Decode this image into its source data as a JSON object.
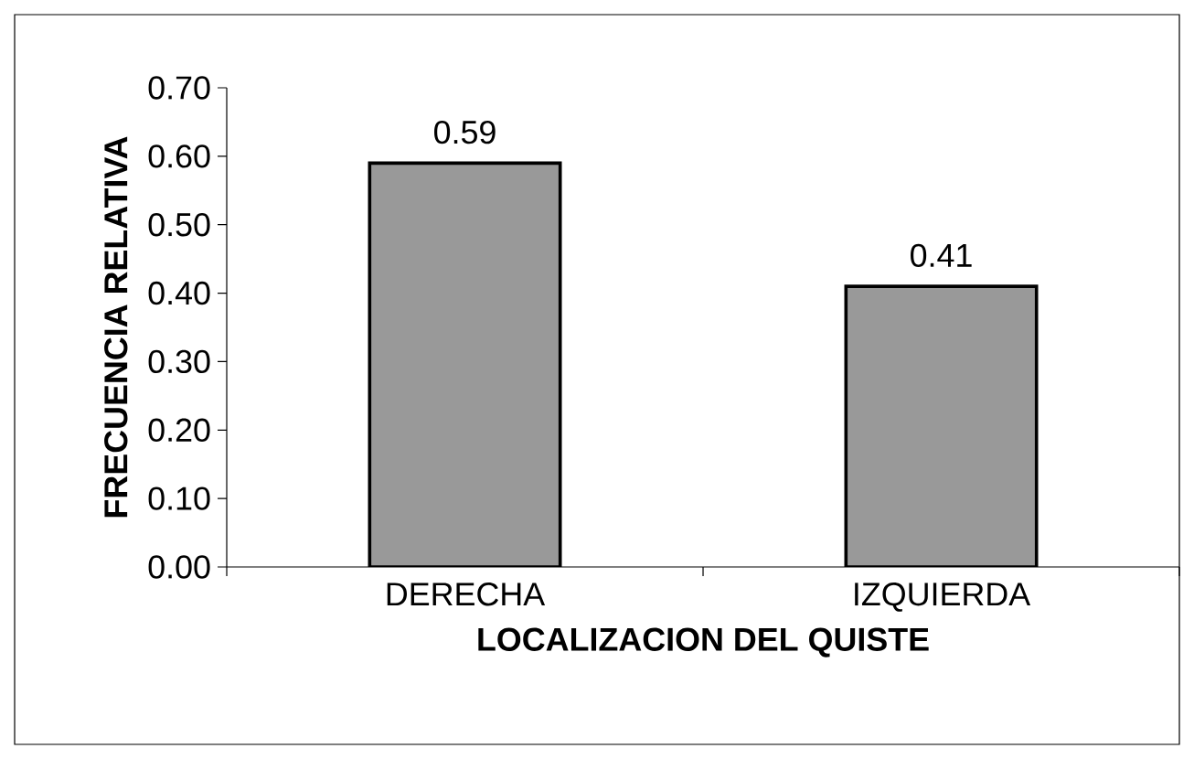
{
  "chart_data": {
    "type": "bar",
    "xlabel": "LOCALIZACION DEL QUISTE",
    "ylabel": "FRECUENCIA RELATIVA",
    "categories": [
      "DERECHA",
      "IZQUIERDA"
    ],
    "values": [
      0.59,
      0.41
    ],
    "value_labels": [
      "0.59",
      "0.41"
    ],
    "color": "#999999",
    "ylim": [
      0,
      0.7
    ],
    "yticks": [
      {
        "value": 0,
        "label": "0.00"
      },
      {
        "value": 0.1,
        "label": "0.10"
      },
      {
        "value": 0.2,
        "label": "0.20"
      },
      {
        "value": 0.3,
        "label": "0.30"
      },
      {
        "value": 0.4,
        "label": "0.40"
      },
      {
        "value": 0.5,
        "label": "0.50"
      },
      {
        "value": 0.6,
        "label": "0.60"
      },
      {
        "value": 0.7,
        "label": "0.70"
      }
    ],
    "grid": false
  }
}
